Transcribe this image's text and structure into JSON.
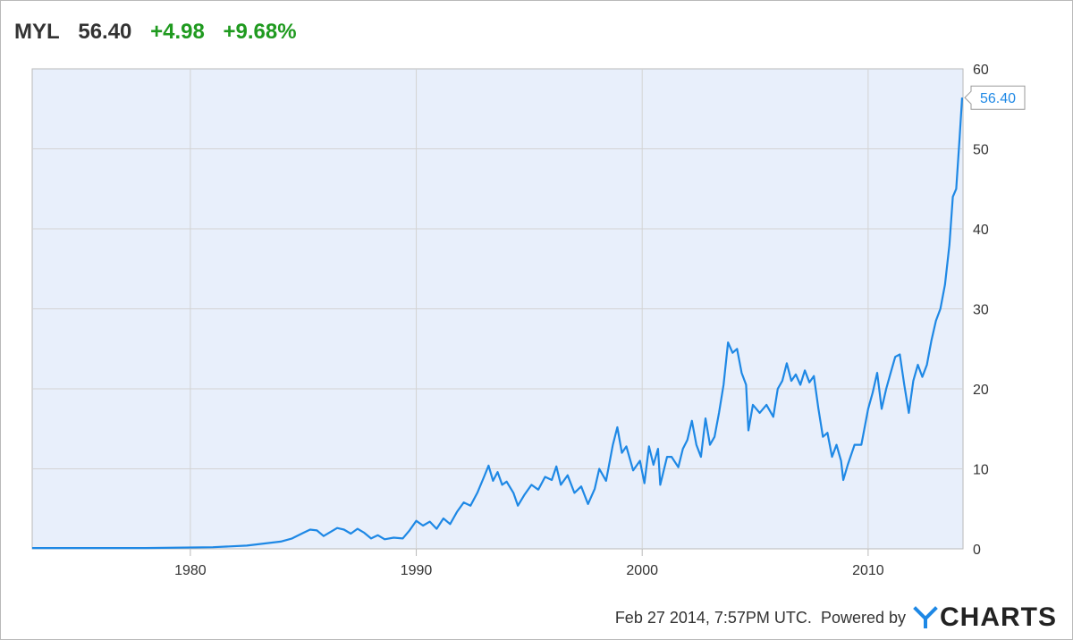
{
  "header": {
    "symbol": "MYL",
    "price": "56.40",
    "change": "+4.98",
    "change_pct": "+9.68%"
  },
  "footer": {
    "timestamp": "Feb 27 2014, 7:57PM UTC.",
    "powered_by": "Powered by",
    "brand": "CHARTS",
    "brand_icon": "ycharts-y-icon"
  },
  "colors": {
    "line": "#1e88e5",
    "plot_bg": "#e8effb",
    "grid": "#d3d3d3",
    "up": "#1f9a1f"
  },
  "chart_data": {
    "type": "line",
    "title": "",
    "xlabel": "",
    "ylabel": "",
    "xlim": [
      1973,
      2014.2
    ],
    "ylim": [
      0,
      60
    ],
    "x_ticks": [
      "1980",
      "1990",
      "2000",
      "2010"
    ],
    "y_ticks": [
      "0",
      "10",
      "20",
      "30",
      "40",
      "50",
      "60"
    ],
    "grid": true,
    "last_value_label": "56.40",
    "series": [
      {
        "values": [
          [
            1973.0,
            0.1
          ],
          [
            1978.0,
            0.1
          ],
          [
            1981.0,
            0.2
          ],
          [
            1982.5,
            0.4
          ],
          [
            1984.0,
            0.9
          ],
          [
            1984.5,
            1.3
          ],
          [
            1985.0,
            2.0
          ],
          [
            1985.3,
            2.4
          ],
          [
            1985.6,
            2.3
          ],
          [
            1985.9,
            1.6
          ],
          [
            1986.2,
            2.1
          ],
          [
            1986.5,
            2.6
          ],
          [
            1986.8,
            2.4
          ],
          [
            1987.1,
            1.9
          ],
          [
            1987.4,
            2.5
          ],
          [
            1987.7,
            2.0
          ],
          [
            1988.0,
            1.3
          ],
          [
            1988.3,
            1.7
          ],
          [
            1988.6,
            1.2
          ],
          [
            1989.0,
            1.4
          ],
          [
            1989.4,
            1.3
          ],
          [
            1989.7,
            2.3
          ],
          [
            1990.0,
            3.5
          ],
          [
            1990.3,
            2.9
          ],
          [
            1990.6,
            3.4
          ],
          [
            1990.9,
            2.5
          ],
          [
            1991.2,
            3.8
          ],
          [
            1991.5,
            3.1
          ],
          [
            1991.8,
            4.6
          ],
          [
            1992.1,
            5.8
          ],
          [
            1992.4,
            5.4
          ],
          [
            1992.7,
            7.0
          ],
          [
            1993.0,
            9.0
          ],
          [
            1993.2,
            10.4
          ],
          [
            1993.4,
            8.5
          ],
          [
            1993.6,
            9.6
          ],
          [
            1993.8,
            8.0
          ],
          [
            1994.0,
            8.4
          ],
          [
            1994.3,
            7.0
          ],
          [
            1994.5,
            5.4
          ],
          [
            1994.8,
            6.8
          ],
          [
            1995.1,
            8.0
          ],
          [
            1995.4,
            7.4
          ],
          [
            1995.7,
            9.0
          ],
          [
            1996.0,
            8.6
          ],
          [
            1996.2,
            10.3
          ],
          [
            1996.4,
            8.0
          ],
          [
            1996.7,
            9.2
          ],
          [
            1997.0,
            7.0
          ],
          [
            1997.3,
            7.8
          ],
          [
            1997.6,
            5.6
          ],
          [
            1997.9,
            7.5
          ],
          [
            1998.1,
            10.0
          ],
          [
            1998.4,
            8.5
          ],
          [
            1998.7,
            13.0
          ],
          [
            1998.9,
            15.2
          ],
          [
            1999.1,
            12.0
          ],
          [
            1999.3,
            12.8
          ],
          [
            1999.6,
            9.8
          ],
          [
            1999.9,
            11.0
          ],
          [
            2000.1,
            8.2
          ],
          [
            2000.3,
            12.8
          ],
          [
            2000.5,
            10.5
          ],
          [
            2000.7,
            12.5
          ],
          [
            2000.8,
            8.0
          ],
          [
            2001.1,
            11.5
          ],
          [
            2001.3,
            11.5
          ],
          [
            2001.6,
            10.2
          ],
          [
            2001.8,
            12.5
          ],
          [
            2002.0,
            13.6
          ],
          [
            2002.2,
            16.0
          ],
          [
            2002.4,
            13.0
          ],
          [
            2002.6,
            11.5
          ],
          [
            2002.8,
            16.3
          ],
          [
            2003.0,
            13.0
          ],
          [
            2003.2,
            14.0
          ],
          [
            2003.4,
            17.0
          ],
          [
            2003.6,
            20.5
          ],
          [
            2003.8,
            25.8
          ],
          [
            2004.0,
            24.5
          ],
          [
            2004.2,
            25.0
          ],
          [
            2004.4,
            22.0
          ],
          [
            2004.6,
            20.5
          ],
          [
            2004.7,
            14.8
          ],
          [
            2004.9,
            18.0
          ],
          [
            2005.2,
            17.0
          ],
          [
            2005.5,
            18.0
          ],
          [
            2005.8,
            16.5
          ],
          [
            2006.0,
            20.0
          ],
          [
            2006.2,
            21.0
          ],
          [
            2006.4,
            23.2
          ],
          [
            2006.6,
            21.0
          ],
          [
            2006.8,
            21.8
          ],
          [
            2007.0,
            20.5
          ],
          [
            2007.2,
            22.3
          ],
          [
            2007.4,
            20.8
          ],
          [
            2007.6,
            21.6
          ],
          [
            2007.8,
            17.5
          ],
          [
            2008.0,
            14.0
          ],
          [
            2008.2,
            14.5
          ],
          [
            2008.4,
            11.5
          ],
          [
            2008.6,
            13.0
          ],
          [
            2008.8,
            11.0
          ],
          [
            2008.9,
            8.6
          ],
          [
            2009.1,
            10.5
          ],
          [
            2009.4,
            13.0
          ],
          [
            2009.7,
            13.0
          ],
          [
            2010.0,
            17.5
          ],
          [
            2010.2,
            19.5
          ],
          [
            2010.4,
            22.0
          ],
          [
            2010.6,
            17.5
          ],
          [
            2010.8,
            20.0
          ],
          [
            2011.0,
            22.0
          ],
          [
            2011.2,
            24.0
          ],
          [
            2011.4,
            24.3
          ],
          [
            2011.6,
            20.5
          ],
          [
            2011.8,
            17.0
          ],
          [
            2012.0,
            21.0
          ],
          [
            2012.2,
            23.0
          ],
          [
            2012.4,
            21.5
          ],
          [
            2012.6,
            23.0
          ],
          [
            2012.8,
            26.0
          ],
          [
            2013.0,
            28.5
          ],
          [
            2013.2,
            30.0
          ],
          [
            2013.4,
            33.0
          ],
          [
            2013.6,
            38.0
          ],
          [
            2013.75,
            44.0
          ],
          [
            2013.9,
            45.0
          ],
          [
            2014.05,
            51.4
          ],
          [
            2014.16,
            56.4
          ]
        ]
      }
    ]
  }
}
